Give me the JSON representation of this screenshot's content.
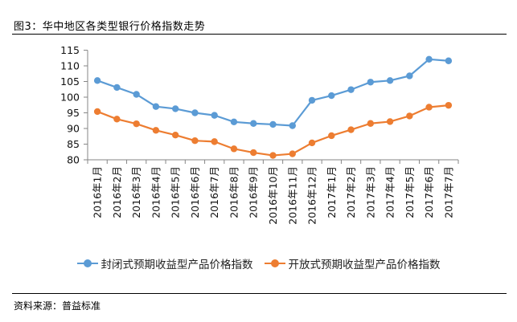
{
  "figure": {
    "title": "图3：华中地区各类型银行价格指数走势",
    "source": "资料来源：普益标准"
  },
  "chart_data": {
    "type": "line",
    "title": "",
    "xlabel": "",
    "ylabel": "",
    "ylim": [
      80,
      115
    ],
    "yticks": [
      80,
      85,
      90,
      95,
      100,
      105,
      110,
      115
    ],
    "grid": false,
    "legend_position": "bottom",
    "categories": [
      "2016年1月",
      "2016年2月",
      "2016年3月",
      "2016年4月",
      "2016年5月",
      "2016年6月",
      "2016年7月",
      "2016年8月",
      "2016年9月",
      "2016年10月",
      "2016年11月",
      "2016年12月",
      "2017年1月",
      "2017年2月",
      "2017年3月",
      "2017年4月",
      "2017年5月",
      "2017年6月",
      "2017年7月"
    ],
    "series": [
      {
        "name": "封闭式预期收益型产品价格指数",
        "color": "#5B9BD5",
        "values": [
          105.3,
          103.1,
          100.9,
          97.0,
          96.3,
          95.0,
          94.2,
          92.1,
          91.6,
          91.3,
          90.9,
          99.0,
          100.5,
          102.4,
          104.8,
          105.3,
          106.8,
          112.1,
          111.6
        ]
      },
      {
        "name": "开放式预期收益型产品价格指数",
        "color": "#ED7D31",
        "values": [
          95.4,
          93.0,
          91.5,
          89.4,
          87.9,
          86.1,
          85.8,
          83.5,
          82.3,
          81.4,
          81.9,
          85.4,
          87.7,
          89.6,
          91.6,
          92.2,
          94.0,
          96.8,
          97.4
        ]
      }
    ]
  }
}
